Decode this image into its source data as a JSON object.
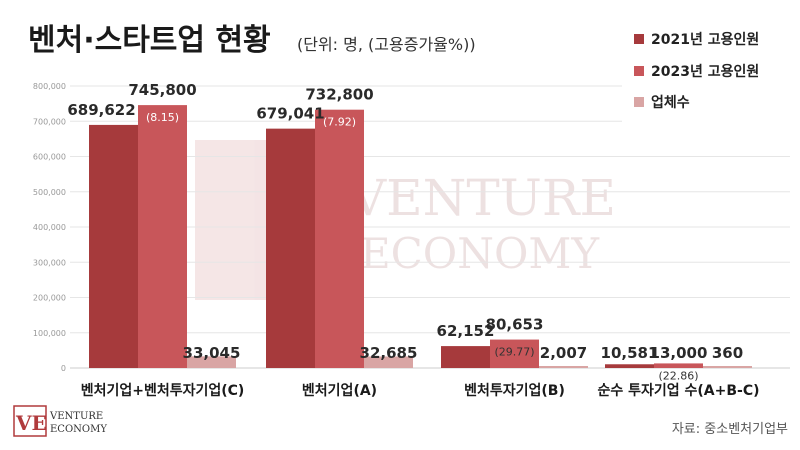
{
  "header": {
    "title": "벤처·스타트업 현황",
    "unit_note": "(단위: 명, (고용증가율%))"
  },
  "source": "자료: 중소벤처기업부",
  "watermark": {
    "line1": "VENTURE",
    "line2": "ECONOMY"
  },
  "logo": {
    "mark": "VE",
    "line1": "VENTURE",
    "line2": "ECONOMY"
  },
  "colors": {
    "series_2021": "#a63a3c",
    "series_2023": "#c8565a",
    "series_firms": "#d9a5a4",
    "title": "#1a1a1a",
    "grid": "#e6e6e6"
  },
  "chart_data": {
    "type": "bar",
    "title": "벤처·스타트업 현황",
    "ylim": [
      0,
      800000
    ],
    "yticks": [
      "0",
      "100,000",
      "200,000",
      "300,000",
      "400,000",
      "500,000",
      "600,000",
      "700,000",
      "800,000"
    ],
    "categories": [
      "벤처기업+벤처투자기업(C)",
      "벤처기업(A)",
      "벤처투자기업(B)",
      "순수 투자기업 수(A+B-C)"
    ],
    "series": [
      {
        "name": "2021년 고용인원",
        "values": [
          689622,
          679041,
          62152,
          10581
        ],
        "labels": [
          "689,622",
          "679,041",
          "62,152",
          "10,581"
        ]
      },
      {
        "name": "2023년 고용인원",
        "values": [
          745800,
          732800,
          80653,
          13000
        ],
        "labels": [
          "745,800",
          "732,800",
          "80,653",
          "13,000"
        ],
        "growth": [
          "(8.15)",
          "(7.92)",
          "(29.77)",
          "(22.86)"
        ]
      },
      {
        "name": "업체수",
        "values": [
          33045,
          32685,
          2007,
          360
        ],
        "labels": [
          "33,045",
          "32,685",
          "2,007",
          "360"
        ]
      }
    ],
    "legend_position": "top-right",
    "grid": true
  }
}
